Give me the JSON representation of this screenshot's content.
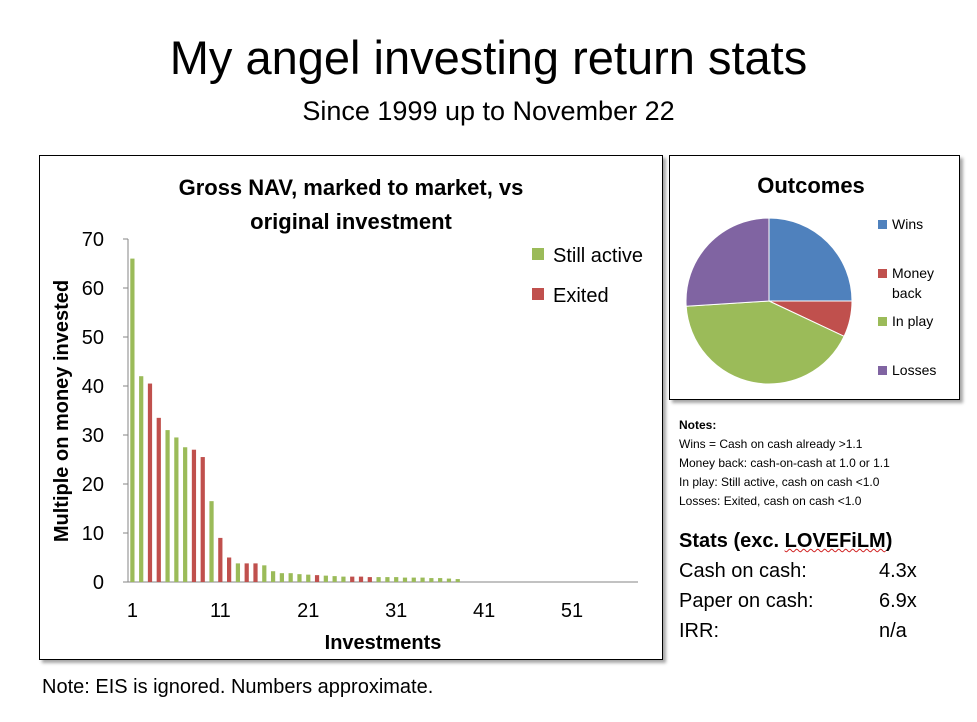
{
  "page": {
    "title": "My angel investing return stats",
    "subtitle": "Since 1999 up to November 22",
    "footnote": "Note: EIS is ignored. Numbers approximate."
  },
  "chart_data": [
    {
      "type": "bar",
      "title_lines": [
        "Gross NAV, marked to market, vs",
        "original investment"
      ],
      "xlabel": "Investments",
      "ylabel": "Multiple on money invested",
      "ylim": [
        0,
        70
      ],
      "yticks": [
        0,
        10,
        20,
        30,
        40,
        50,
        60,
        70
      ],
      "xticks": [
        1,
        11,
        21,
        31,
        41,
        51
      ],
      "x_range": [
        1,
        58
      ],
      "legend": [
        "Still active",
        "Exited"
      ],
      "colors": {
        "Still active": "#9bbb59",
        "Exited": "#c0504d"
      },
      "series": [
        {
          "name": "Still active",
          "points": [
            [
              1,
              66
            ],
            [
              2,
              42
            ],
            [
              5,
              31
            ],
            [
              6,
              29.5
            ],
            [
              7,
              27.5
            ],
            [
              10,
              16.5
            ],
            [
              13,
              3.8
            ],
            [
              16,
              3.4
            ],
            [
              17,
              2.2
            ],
            [
              18,
              1.8
            ],
            [
              19,
              1.8
            ],
            [
              20,
              1.6
            ],
            [
              21,
              1.5
            ],
            [
              23,
              1.3
            ],
            [
              24,
              1.2
            ],
            [
              25,
              1.1
            ],
            [
              29,
              1.0
            ],
            [
              30,
              1.0
            ],
            [
              31,
              1.0
            ],
            [
              32,
              0.9
            ],
            [
              33,
              0.9
            ],
            [
              34,
              0.9
            ],
            [
              35,
              0.8
            ],
            [
              36,
              0.8
            ],
            [
              37,
              0.7
            ],
            [
              38,
              0.6
            ]
          ]
        },
        {
          "name": "Exited",
          "points": [
            [
              3,
              40.5
            ],
            [
              4,
              33.5
            ],
            [
              8,
              27
            ],
            [
              9,
              25.5
            ],
            [
              11,
              9
            ],
            [
              12,
              5
            ],
            [
              14,
              3.8
            ],
            [
              15,
              3.8
            ],
            [
              22,
              1.4
            ],
            [
              26,
              1.1
            ],
            [
              27,
              1.1
            ],
            [
              28,
              1.0
            ]
          ]
        }
      ]
    },
    {
      "type": "pie",
      "title": "Outcomes",
      "labels": [
        "Wins",
        "Money back",
        "In play",
        "Losses"
      ],
      "legend_lines": [
        [
          "Wins"
        ],
        [
          "Money",
          "back"
        ],
        [
          "In play"
        ],
        [
          "Losses"
        ]
      ],
      "values": [
        25,
        7,
        42,
        26
      ],
      "colors": [
        "#4f81bd",
        "#c0504d",
        "#9bbb59",
        "#8064a2"
      ]
    }
  ],
  "notes": {
    "header": "Notes:",
    "lines": [
      "Wins = Cash on cash already >1.1",
      "Money back: cash-on-cash at 1.0 or 1.1",
      "In play: Still active, cash on cash <1.0",
      "Losses: Exited, cash on cash <1.0"
    ]
  },
  "stats": {
    "header_prefix": "Stats (exc. ",
    "header_brand": "LOVEFiLM",
    "header_suffix": ")",
    "rows": [
      {
        "label": "Cash on cash:",
        "value": "4.3x"
      },
      {
        "label": "Paper on cash:",
        "value": "6.9x"
      },
      {
        "label": "IRR:",
        "value": "n/a"
      }
    ]
  }
}
